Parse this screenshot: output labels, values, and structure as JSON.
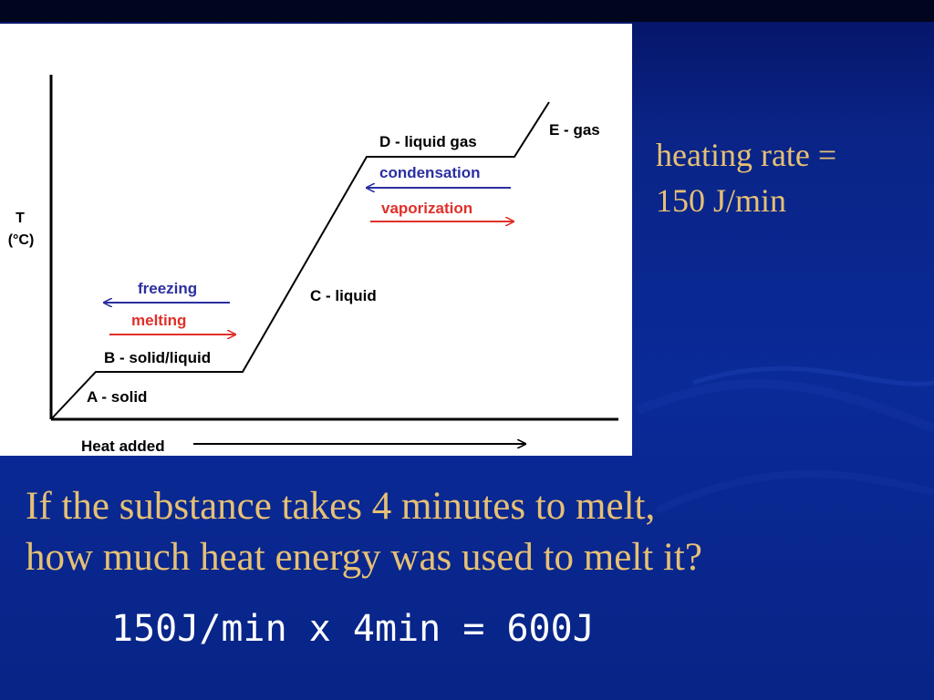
{
  "slide": {
    "heating_rate_line1": "heating rate =",
    "heating_rate_line2": "150 J/min",
    "question_line1": "If the substance takes 4 minutes to melt,",
    "question_line2": "how much heat energy was used to melt it?",
    "answer": "150J/min x 4min = 600J"
  },
  "diagram": {
    "y_axis_label_line1": "T",
    "y_axis_label_line2": "(°C)",
    "x_axis_label": "Heat added",
    "segments": {
      "a": "A - solid",
      "b": "B - solid/liquid",
      "c": "C - liquid",
      "d": "D - liquid gas",
      "e": "E - gas"
    },
    "arrows": {
      "freezing": "freezing",
      "melting": "melting",
      "condensation": "condensation",
      "vaporization": "vaporization"
    },
    "colors": {
      "cooling": "#2b2fa0",
      "heating": "#e0302a",
      "curve": "#000000"
    }
  },
  "theme": {
    "text_gold": "#e6c074",
    "answer_white": "#ffffff"
  }
}
